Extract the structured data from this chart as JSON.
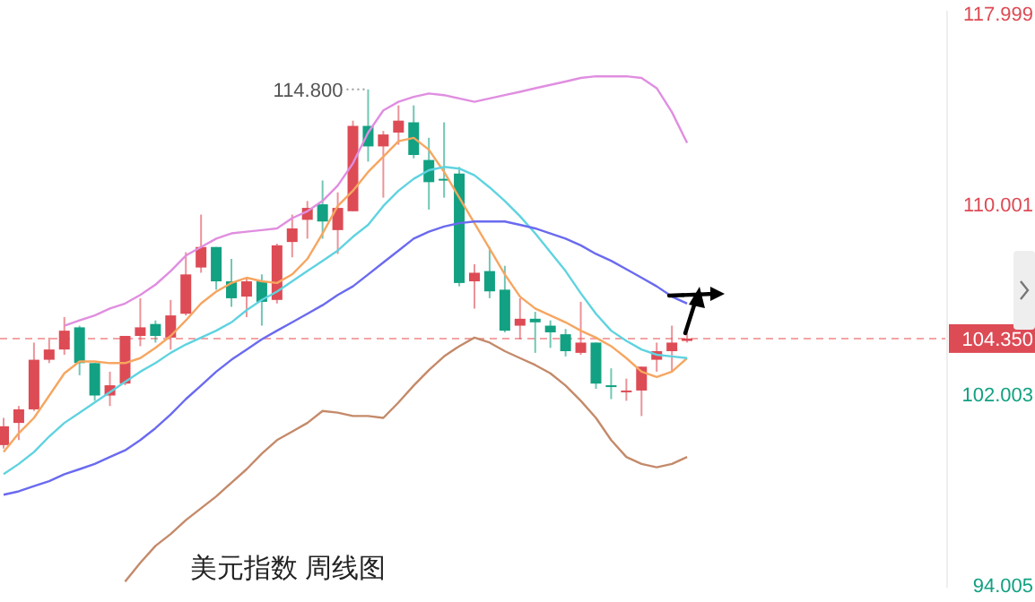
{
  "chart_data": {
    "type": "candlestick",
    "title": "美元指数 周线图",
    "categories": [
      null,
      null,
      null,
      null,
      null,
      null,
      null,
      null,
      null,
      null,
      null,
      null,
      null,
      null,
      null,
      null,
      null,
      null,
      null,
      null,
      null,
      null,
      null,
      null,
      null,
      null,
      null,
      null,
      null,
      null,
      null,
      null,
      null,
      null,
      null,
      null,
      null,
      null,
      null,
      null,
      null,
      null,
      null,
      null,
      null,
      null
    ],
    "ohlc": [
      [
        99.88,
        101.02,
        99.73,
        100.67
      ],
      [
        100.81,
        101.52,
        100.09,
        101.38
      ],
      [
        101.38,
        104.18,
        101.31,
        103.46
      ],
      [
        103.46,
        104.39,
        103.32,
        103.89
      ],
      [
        103.89,
        105.25,
        103.67,
        104.68
      ],
      [
        104.82,
        104.89,
        102.81,
        103.32
      ],
      [
        103.32,
        103.32,
        101.74,
        101.96
      ],
      [
        101.96,
        102.96,
        101.52,
        102.39
      ],
      [
        102.46,
        104.46,
        102.39,
        104.46
      ],
      [
        104.46,
        106.04,
        104.03,
        104.82
      ],
      [
        104.96,
        105.11,
        104.18,
        104.46
      ],
      [
        104.39,
        105.97,
        103.89,
        105.32
      ],
      [
        105.39,
        107.97,
        105.32,
        107.04
      ],
      [
        107.33,
        109.55,
        107.11,
        108.19
      ],
      [
        108.19,
        108.19,
        106.4,
        106.75
      ],
      [
        106.75,
        107.69,
        105.68,
        106.04
      ],
      [
        106.11,
        106.9,
        105.25,
        106.75
      ],
      [
        106.75,
        107.04,
        104.89,
        105.89
      ],
      [
        105.97,
        108.33,
        105.82,
        108.26
      ],
      [
        108.4,
        109.55,
        107.76,
        108.97
      ],
      [
        109.33,
        110.12,
        108.54,
        109.83
      ],
      [
        109.98,
        110.98,
        108.54,
        109.26
      ],
      [
        108.9,
        110.48,
        107.9,
        109.83
      ],
      [
        109.69,
        113.49,
        109.69,
        113.27
      ],
      [
        113.27,
        114.8,
        111.77,
        112.41
      ],
      [
        112.41,
        113.06,
        110.26,
        112.91
      ],
      [
        112.99,
        114.13,
        112.48,
        113.49
      ],
      [
        113.42,
        114.13,
        111.91,
        112.05
      ],
      [
        111.84,
        112.77,
        109.76,
        110.91
      ],
      [
        111.05,
        113.42,
        110.26,
        110.98
      ],
      [
        111.27,
        111.55,
        106.54,
        106.68
      ],
      [
        106.75,
        107.47,
        105.61,
        107.11
      ],
      [
        107.18,
        108.19,
        106.04,
        106.33
      ],
      [
        106.4,
        107.4,
        104.61,
        104.68
      ],
      [
        104.89,
        106.04,
        104.32,
        105.18
      ],
      [
        105.18,
        105.47,
        103.75,
        105.03
      ],
      [
        104.89,
        105.11,
        103.96,
        104.61
      ],
      [
        104.53,
        104.75,
        103.6,
        103.82
      ],
      [
        103.75,
        105.89,
        103.67,
        104.18
      ],
      [
        104.18,
        104.18,
        102.24,
        102.46
      ],
      [
        102.39,
        103.1,
        101.81,
        102.32
      ],
      [
        102.1,
        102.67,
        101.74,
        102.17
      ],
      [
        102.17,
        103.17,
        101.1,
        103.17
      ],
      [
        103.46,
        104.18,
        102.96,
        103.82
      ],
      [
        103.82,
        104.89,
        102.96,
        104.18
      ],
      [
        104.25,
        104.75,
        104.18,
        104.35
      ]
    ],
    "colors": [
      "#dd4b55",
      "#dd4b55",
      "#dd4b55",
      "#dd4b55",
      "#dd4b55",
      "#12a182",
      "#12a182",
      "#dd4b55",
      "#dd4b55",
      "#dd4b55",
      "#12a182",
      "#dd4b55",
      "#dd4b55",
      "#dd4b55",
      "#12a182",
      "#12a182",
      "#dd4b55",
      "#12a182",
      "#dd4b55",
      "#dd4b55",
      "#dd4b55",
      "#12a182",
      "#dd4b55",
      "#dd4b55",
      "#12a182",
      "#dd4b55",
      "#dd4b55",
      "#12a182",
      "#12a182",
      "#12a182",
      "#12a182",
      "#dd4b55",
      "#12a182",
      "#12a182",
      "#dd4b55",
      "#12a182",
      "#12a182",
      "#12a182",
      "#dd4b55",
      "#12a182",
      "#12a182",
      "#dd4b55",
      "#dd4b55",
      "#dd4b55",
      "#dd4b55",
      "#dd4b55"
    ],
    "series": [
      {
        "type": "line",
        "color": "#e08ee0",
        "values": [
          null,
          null,
          null,
          null,
          104.89,
          105.11,
          105.32,
          105.61,
          105.82,
          106.18,
          106.61,
          107.18,
          107.83,
          108.19,
          108.54,
          108.76,
          108.83,
          108.9,
          108.97,
          109.4,
          109.69,
          110.12,
          110.77,
          111.7,
          112.99,
          113.92,
          114.28,
          114.49,
          114.63,
          114.56,
          114.42,
          114.28,
          114.42,
          114.56,
          114.7,
          114.85,
          114.99,
          115.13,
          115.28,
          115.35,
          115.35,
          115.35,
          115.28,
          114.85,
          113.85,
          112.56
        ]
      },
      {
        "type": "line",
        "color": "#f6a660",
        "values": [
          99.59,
          100.38,
          101.02,
          101.95,
          102.89,
          103.39,
          103.39,
          103.32,
          103.32,
          103.53,
          103.96,
          104.46,
          105.11,
          105.82,
          106.32,
          106.68,
          106.9,
          106.75,
          106.68,
          107.04,
          107.69,
          108.76,
          109.91,
          110.55,
          111.34,
          111.98,
          112.63,
          112.77,
          112.27,
          111.34,
          110.26,
          109.19,
          108.12,
          107.04,
          106.11,
          105.61,
          105.32,
          105.03,
          104.68,
          104.39,
          104.03,
          103.53,
          102.96,
          102.74,
          102.96,
          103.53
        ]
      },
      {
        "type": "line",
        "color": "#5fd3e0",
        "values": [
          98.66,
          99.09,
          99.59,
          100.24,
          100.81,
          101.24,
          101.67,
          102.1,
          102.53,
          102.96,
          103.32,
          103.75,
          104.1,
          104.39,
          104.68,
          105.03,
          105.54,
          105.97,
          106.32,
          106.75,
          107.18,
          107.61,
          108.04,
          108.62,
          109.12,
          109.91,
          110.55,
          111.05,
          111.41,
          111.55,
          111.48,
          111.2,
          110.69,
          110.12,
          109.48,
          108.76,
          107.97,
          107.18,
          106.25,
          105.39,
          104.68,
          104.25,
          103.89,
          103.67,
          103.6,
          103.53
        ]
      },
      {
        "type": "line",
        "color": "#6a6af0",
        "values": [
          97.8,
          97.94,
          98.16,
          98.37,
          98.66,
          98.87,
          99.09,
          99.38,
          99.66,
          100.09,
          100.59,
          101.17,
          101.81,
          102.38,
          102.96,
          103.46,
          103.89,
          104.32,
          104.68,
          105.03,
          105.39,
          105.75,
          106.18,
          106.54,
          107.04,
          107.54,
          108.04,
          108.54,
          108.83,
          109.05,
          109.19,
          109.26,
          109.26,
          109.26,
          109.12,
          108.97,
          108.76,
          108.54,
          108.26,
          107.9,
          107.61,
          107.26,
          106.9,
          106.54,
          106.11,
          105.82
        ]
      },
      {
        "type": "line",
        "color": "#c48a6a",
        "values": [
          null,
          null,
          null,
          null,
          null,
          null,
          null,
          null,
          94.15,
          94.94,
          95.65,
          96.15,
          96.73,
          97.23,
          97.73,
          98.3,
          98.87,
          99.52,
          100.09,
          100.45,
          100.81,
          101.31,
          101.24,
          101.1,
          101.1,
          101.02,
          101.67,
          102.38,
          103.03,
          103.6,
          104.03,
          104.39,
          104.18,
          103.82,
          103.53,
          103.24,
          102.89,
          102.38,
          101.74,
          101.02,
          100.09,
          99.38,
          99.09,
          98.95,
          99.09,
          99.38
        ]
      }
    ],
    "ylim": [
      93.9,
      118.1
    ],
    "yticks": [
      {
        "value": 117.999,
        "label": "117.999"
      },
      {
        "value": 110.001,
        "label": "110.001"
      },
      {
        "value": 102.003,
        "label": "102.003"
      },
      {
        "value": 94.005,
        "label": "94.005"
      }
    ],
    "ref_lines": [
      {
        "axis": "y",
        "value": 104.35,
        "label": "104.350",
        "color": "#f4a4a4",
        "line_style": "dashed"
      }
    ],
    "annotations": [
      "114.800"
    ],
    "tick_labels": "y",
    "grid": false
  }
}
